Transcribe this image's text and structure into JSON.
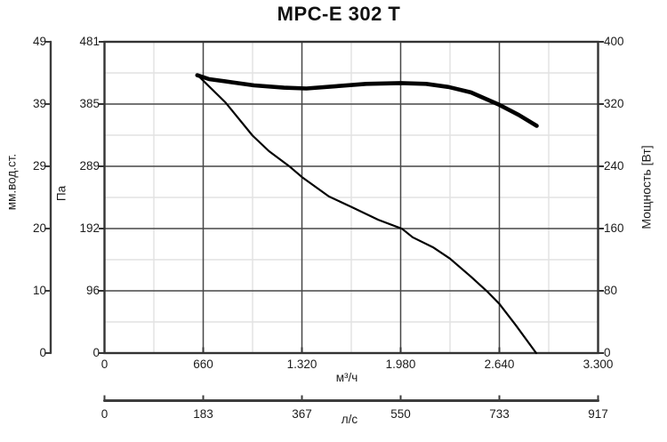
{
  "title": "MPC-E 302 T",
  "colors": {
    "background": "#ffffff",
    "text": "#1c1c1c",
    "frame": "#333333",
    "axis_bar": "#3d3d3d",
    "grid_major": "#474747",
    "grid_minor": "#e2e2e2",
    "curve": "#000000"
  },
  "chart_data": {
    "type": "line",
    "title": "MPC-E 302 T",
    "grid": "major and minor gridlines, both directions",
    "legend_position": "none",
    "x_axis": {
      "unit": "м³/ч",
      "range": [
        0,
        3300
      ],
      "tick_values": [
        0,
        660,
        1320,
        1980,
        2640,
        3300
      ],
      "tick_labels": [
        "0",
        "660",
        "1.320",
        "1.980",
        "2.640",
        "3.300"
      ]
    },
    "x_axis_secondary": {
      "unit": "л/с",
      "range": [
        0,
        917
      ],
      "tick_values": [
        0,
        183,
        367,
        550,
        733,
        917
      ],
      "tick_labels": [
        "0",
        "183",
        "367",
        "550",
        "733",
        "917"
      ]
    },
    "y_axis_mm": {
      "title": "мм.вод.ст.",
      "range": [
        0,
        49
      ],
      "tick_labels": [
        "49",
        "39",
        "29",
        "20",
        "10",
        "0"
      ]
    },
    "y_axis_pa": {
      "title": "Па",
      "range": [
        0,
        481
      ],
      "tick_values": [
        481,
        385,
        289,
        192,
        96,
        0
      ],
      "tick_labels": [
        "481",
        "385",
        "289",
        "192",
        "96",
        "0"
      ]
    },
    "y_axis_power": {
      "title": "Мощность [Вт]",
      "range": [
        0,
        400
      ],
      "tick_values": [
        400,
        320,
        240,
        160,
        80,
        0
      ],
      "tick_labels": [
        "400",
        "320",
        "240",
        "160",
        "80",
        "0"
      ]
    },
    "series": [
      {
        "name": "pressure-curve",
        "y_axis": "Па",
        "line_style": "thin",
        "points": [
          [
            620,
            430
          ],
          [
            660,
            421
          ],
          [
            810,
            387
          ],
          [
            990,
            336
          ],
          [
            1100,
            312
          ],
          [
            1234,
            289
          ],
          [
            1320,
            272
          ],
          [
            1500,
            242
          ],
          [
            1650,
            226
          ],
          [
            1830,
            206
          ],
          [
            1990,
            192
          ],
          [
            2060,
            179
          ],
          [
            2200,
            163
          ],
          [
            2310,
            146
          ],
          [
            2450,
            118
          ],
          [
            2560,
            95
          ],
          [
            2640,
            76
          ],
          [
            2750,
            43
          ],
          [
            2886,
            0
          ]
        ]
      },
      {
        "name": "power-curve",
        "y_axis": "Мощность [Вт]",
        "line_style": "thick",
        "points": [
          [
            620,
            357
          ],
          [
            700,
            352
          ],
          [
            850,
            348
          ],
          [
            1000,
            344
          ],
          [
            1200,
            341
          ],
          [
            1350,
            340
          ],
          [
            1550,
            343
          ],
          [
            1750,
            346
          ],
          [
            1980,
            347
          ],
          [
            2150,
            346
          ],
          [
            2300,
            342
          ],
          [
            2450,
            335
          ],
          [
            2640,
            319
          ],
          [
            2770,
            306
          ],
          [
            2890,
            292
          ]
        ]
      }
    ]
  }
}
